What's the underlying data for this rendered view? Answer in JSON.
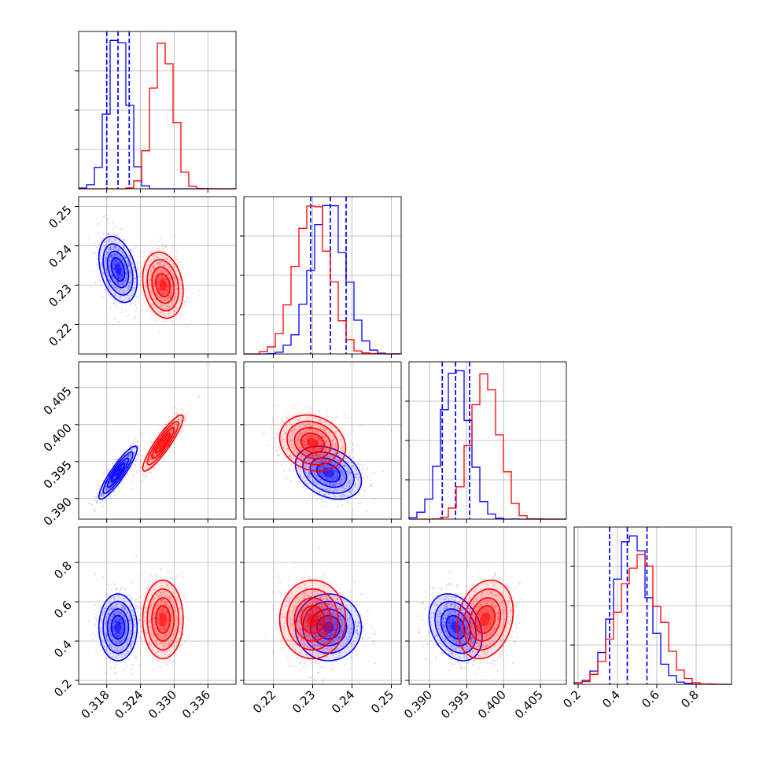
{
  "chart_data": {
    "type": "scatter",
    "title": "",
    "grid": true,
    "colors": {
      "blue": "#0000ff",
      "red": "#ff0000"
    },
    "parameters": [
      {
        "range": [
          0.313,
          0.341
        ],
        "ticks": [
          "0.318",
          "0.324",
          "0.330",
          "0.336"
        ],
        "tick_values": [
          0.318,
          0.324,
          0.33,
          0.336
        ]
      },
      {
        "range": [
          0.2125,
          0.2525
        ],
        "ticks": [
          "0.22",
          "0.23",
          "0.24",
          "0.25"
        ],
        "tick_values": [
          0.22,
          0.23,
          0.24,
          0.25
        ]
      },
      {
        "range": [
          0.3872,
          0.4085
        ],
        "ticks": [
          "0.390",
          "0.395",
          "0.400",
          "0.405"
        ],
        "tick_values": [
          0.39,
          0.395,
          0.4,
          0.405
        ]
      },
      {
        "range": [
          0.18,
          0.98
        ],
        "ticks": [
          "0.2",
          "0.4",
          "0.6",
          "0.8"
        ],
        "tick_values": [
          0.2,
          0.4,
          0.6,
          0.8
        ]
      }
    ],
    "series": [
      {
        "color": "#0000ff",
        "mean": [
          0.32,
          0.234,
          0.3935,
          0.47
        ],
        "sd": [
          0.0017,
          0.0042,
          0.0018,
          0.085
        ],
        "corr_with_p0": [
          0,
          -0.35,
          0.9,
          0
        ],
        "corr_23": -0.3,
        "quantiles": [
          [
            0.318,
            0.32,
            0.322
          ],
          [
            0.2295,
            0.2345,
            0.2385
          ],
          [
            0.3917,
            0.3935,
            0.3954
          ],
          [
            0.36,
            0.45,
            0.55
          ]
        ]
      },
      {
        "color": "#ff0000",
        "mean": [
          0.328,
          0.23,
          0.3975,
          0.51
        ],
        "sd": [
          0.0018,
          0.0042,
          0.0019,
          0.1
        ],
        "corr_with_p0": [
          0,
          -0.2,
          0.9,
          0
        ],
        "corr_23": 0.2,
        "quantiles": []
      }
    ]
  }
}
